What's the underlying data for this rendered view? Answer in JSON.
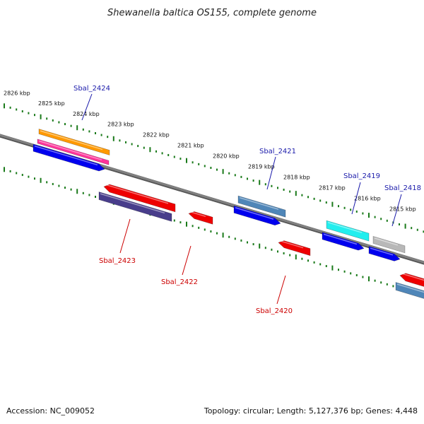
{
  "title": "Shewanella baltica OS155, complete genome",
  "footer": {
    "accession": "Accession: NC_009052",
    "summary": "Topology: circular; Length: 5,127,376 bp; Genes: 4,448"
  },
  "tick_labels": [
    "2826 kbp",
    "2825 kbp",
    "2824 kbp",
    "2823 kbp",
    "2822 kbp",
    "2821 kbp",
    "2820 kbp",
    "2819 kbp",
    "2818 kbp",
    "2817 kbp",
    "2816 kbp",
    "2815 kbp"
  ],
  "gene_labels": {
    "forward": [
      "Sbal_2424",
      "Sbal_2421",
      "Sbal_2419",
      "Sbal_2418"
    ],
    "reverse": [
      "Sbal_2423",
      "Sbal_2422",
      "Sbal_2420"
    ]
  },
  "colors": {
    "backbone": "#808080",
    "tick": "#1a7a1a",
    "forward_label": "#1a1aaa",
    "reverse_label": "#cc0000",
    "cds_forward": "#0000ee",
    "cds_reverse": "#ee0000",
    "gene_orange": "#ff9900",
    "gene_pink": "#ff3399",
    "gene_steelblue": "#4f86b8",
    "gene_cyan": "#22eeee",
    "gene_grey": "#b8b8b8",
    "gene_slate": "#483d8b"
  }
}
